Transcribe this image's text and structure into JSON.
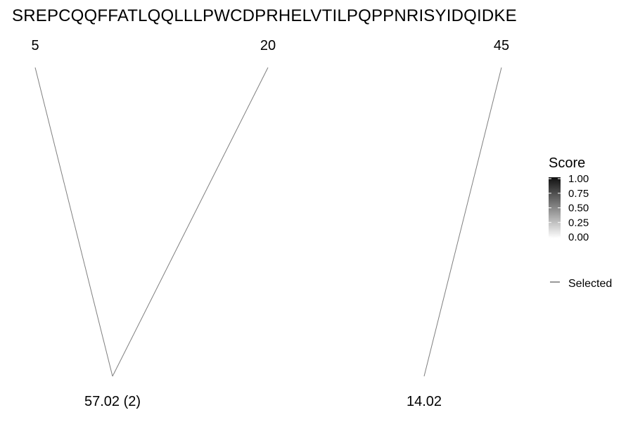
{
  "sequence": "SREPCQQFFATLQQLLLPWCDPRHELVTILPQPPNRISYIDQIDKE",
  "chart_data": {
    "type": "crosslink-diagram",
    "residue_positions": [
      "5",
      "20",
      "45"
    ],
    "modifications": [
      {
        "label": "57.02 (2)",
        "linked_positions": [
          "5",
          "20"
        ]
      },
      {
        "label": "14.02",
        "linked_positions": [
          "45"
        ]
      }
    ],
    "legend": {
      "title": "Score",
      "ticks": [
        "1.00",
        "0.75",
        "0.50",
        "0.25",
        "0.00"
      ],
      "range": [
        0,
        1
      ],
      "selected_label": "Selected",
      "placement": "right",
      "gradient_colors": [
        "#111111",
        "#ffffff"
      ]
    },
    "link_color": "#7f7f7f"
  }
}
